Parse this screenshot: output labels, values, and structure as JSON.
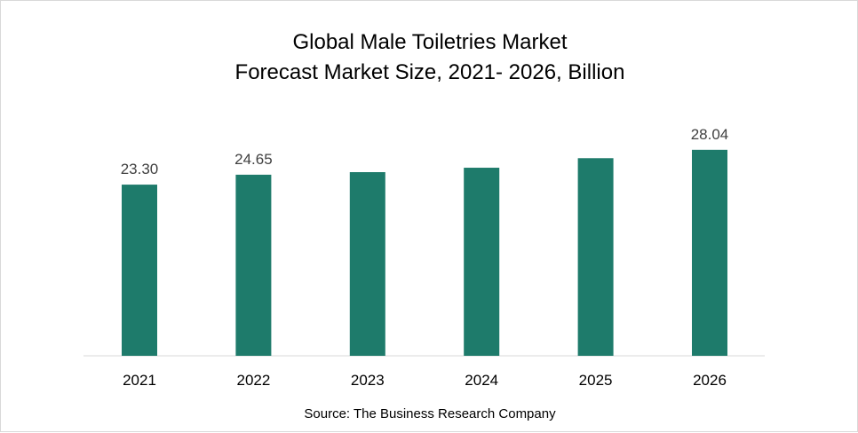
{
  "chart_data": {
    "type": "bar",
    "title": [
      "Global Male Toiletries Market",
      "Forecast Market Size, 2021- 2026, Billion"
    ],
    "categories": [
      "2021",
      "2022",
      "2023",
      "2024",
      "2025",
      "2026"
    ],
    "values": [
      23.3,
      24.65,
      25.0,
      25.6,
      26.9,
      28.04
    ],
    "data_labels": [
      "23.30",
      "24.65",
      "",
      "",
      "",
      "28.04"
    ],
    "xlabel": "",
    "ylabel": "",
    "ylim": [
      0,
      30
    ],
    "grid": false,
    "legend": "none",
    "bar_color": "#1E7B6B",
    "source": "Source: The Business Research Company"
  }
}
